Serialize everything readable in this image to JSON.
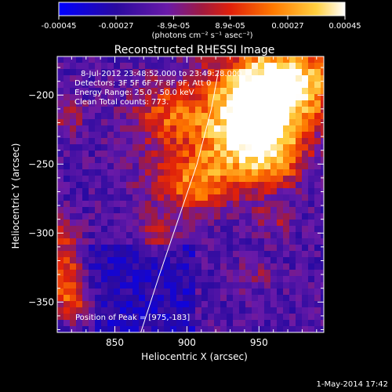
{
  "chart_data": {
    "type": "heatmap",
    "title": "Reconstructed RHESSI Image",
    "colorbar": {
      "ticks": [
        "-0.00045",
        "-0.00027",
        "-8.9e-05",
        "8.9e-05",
        "0.00027",
        "0.00045"
      ],
      "values": [
        -0.00045,
        -0.00027,
        -8.9e-05,
        8.9e-05,
        0.00027,
        0.00045
      ],
      "unit_label": "(photons cm⁻² s⁻¹ asec⁻²)",
      "colors": [
        "#0000ff",
        "#3b0f9a",
        "#7a1fb0",
        "#c01e34",
        "#ff5a00",
        "#ffb000",
        "#ffffff"
      ]
    },
    "xlabel": "Heliocentric X (arcsec)",
    "ylabel": "Heliocentric Y (arcsec)",
    "xlim": [
      810,
      995
    ],
    "ylim": [
      -372,
      -172
    ],
    "xticks": [
      850,
      900,
      950
    ],
    "yticks": [
      -200,
      -250,
      -300,
      -350
    ],
    "xtick_labels": [
      "850",
      "900",
      "950"
    ],
    "ytick_labels": [
      "−200",
      "−250",
      "−300",
      "−350"
    ],
    "info": [
      "8-Jul-2012 23:48:52.000 to 23:49:28.000",
      "Detectors: 3F 5F 6F 7F 8F 9F, Att 0",
      "Energy Range: 25.0 - 50.0 keV",
      "Clean    Total counts: 773."
    ],
    "peak_label": "Position of Peak = [975,-183]",
    "peak": [
      975,
      -183
    ],
    "limb_curve": [
      [
        868,
        -372
      ],
      [
        881,
        -330
      ],
      [
        894,
        -290
      ],
      [
        907,
        -250
      ],
      [
        917,
        -210
      ],
      [
        922,
        -182
      ]
    ],
    "emission_blobs": [
      {
        "x": 970,
        "y": -190,
        "sx": 28,
        "sy": 22,
        "a": 1.0
      },
      {
        "x": 945,
        "y": -205,
        "sx": 24,
        "sy": 20,
        "a": 0.85
      },
      {
        "x": 935,
        "y": -235,
        "sx": 24,
        "sy": 18,
        "a": 0.75
      },
      {
        "x": 905,
        "y": -265,
        "sx": 22,
        "sy": 14,
        "a": 0.7
      },
      {
        "x": 885,
        "y": -215,
        "sx": 18,
        "sy": 18,
        "a": 0.55
      },
      {
        "x": 960,
        "y": -245,
        "sx": 16,
        "sy": 16,
        "a": 0.6
      },
      {
        "x": 880,
        "y": -300,
        "sx": 10,
        "sy": 10,
        "a": 0.35
      },
      {
        "x": 815,
        "y": -320,
        "sx": 8,
        "sy": 18,
        "a": 0.7
      },
      {
        "x": 820,
        "y": -350,
        "sx": 10,
        "sy": 14,
        "a": 0.65
      },
      {
        "x": 818,
        "y": -215,
        "sx": 8,
        "sy": 10,
        "a": 0.35
      },
      {
        "x": 960,
        "y": -290,
        "sx": 10,
        "sy": 8,
        "a": 0.3
      },
      {
        "x": 945,
        "y": -330,
        "sx": 10,
        "sy": 8,
        "a": 0.25
      }
    ]
  },
  "footer": {
    "timestamp": "1-May-2014 17:42"
  }
}
